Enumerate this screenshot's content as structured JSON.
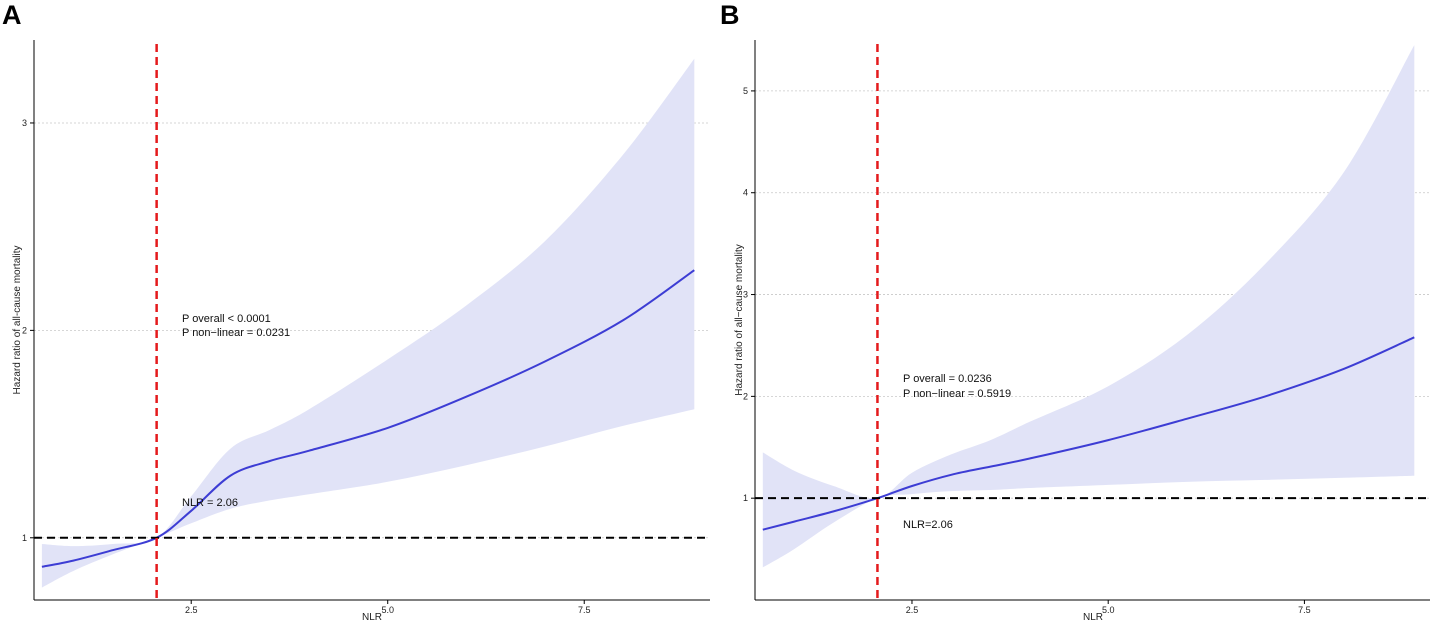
{
  "chart_data": [
    {
      "type": "line",
      "panel": "A",
      "xlabel": "NLR",
      "ylabel": "Hazard ratio of all-cause mortality",
      "xlim": [
        0.5,
        9.1
      ],
      "ylim": [
        0.7,
        3.4
      ],
      "xticks": [
        2.5,
        5.0,
        7.5
      ],
      "xtick_labels": [
        "2.5",
        "5.0",
        "7.5"
      ],
      "yticks": [
        1,
        2,
        3
      ],
      "ytick_labels": [
        "1",
        "2",
        "3"
      ],
      "grid": "horizontal dotted",
      "reference": {
        "x": 2.06,
        "y": 1
      },
      "series": [
        {
          "name": "HR",
          "x": [
            0.6,
            1.0,
            1.5,
            2.06,
            2.5,
            3.0,
            3.5,
            4.0,
            5.0,
            6.0,
            7.0,
            8.0,
            8.9
          ],
          "values": [
            0.86,
            0.89,
            0.94,
            1.0,
            1.13,
            1.3,
            1.37,
            1.42,
            1.53,
            1.68,
            1.85,
            2.05,
            2.29
          ]
        },
        {
          "name": "lower 95% CI",
          "x": [
            0.6,
            1.0,
            1.5,
            2.06,
            2.5,
            3.0,
            3.5,
            4.0,
            5.0,
            6.0,
            7.0,
            8.0,
            8.9
          ],
          "values": [
            0.76,
            0.84,
            0.92,
            1.0,
            1.07,
            1.14,
            1.18,
            1.21,
            1.27,
            1.35,
            1.44,
            1.54,
            1.62
          ]
        },
        {
          "name": "upper 95% CI",
          "x": [
            0.6,
            1.0,
            1.5,
            2.06,
            2.5,
            3.0,
            3.5,
            4.0,
            5.0,
            6.0,
            7.0,
            8.0,
            8.9
          ],
          "values": [
            0.97,
            0.96,
            0.97,
            1.0,
            1.2,
            1.43,
            1.52,
            1.62,
            1.86,
            2.12,
            2.43,
            2.85,
            3.31
          ]
        }
      ],
      "annotations": [
        "P overall < 0.0001",
        "P non−linear = 0.0231",
        "NLR = 2.06"
      ]
    },
    {
      "type": "line",
      "panel": "B",
      "xlabel": "NLR",
      "ylabel": "Hazard ratio of all−cause mortality",
      "xlim": [
        0.5,
        9.1
      ],
      "ylim": [
        0.0,
        5.5
      ],
      "xticks": [
        2.5,
        5.0,
        7.5
      ],
      "xtick_labels": [
        "2.5",
        "5.0",
        "7.5"
      ],
      "yticks": [
        1,
        2,
        3,
        4,
        5
      ],
      "ytick_labels": [
        "1",
        "2",
        "3",
        "4",
        "5"
      ],
      "grid": "horizontal dotted",
      "reference": {
        "x": 2.06,
        "y": 1
      },
      "series": [
        {
          "name": "HR",
          "x": [
            0.6,
            1.0,
            1.5,
            2.06,
            2.5,
            3.0,
            3.5,
            4.0,
            5.0,
            6.0,
            7.0,
            8.0,
            8.9
          ],
          "values": [
            0.69,
            0.77,
            0.87,
            1.0,
            1.12,
            1.23,
            1.31,
            1.39,
            1.57,
            1.78,
            2.0,
            2.27,
            2.58
          ]
        },
        {
          "name": "lower 95% CI",
          "x": [
            0.6,
            1.0,
            1.5,
            2.06,
            2.5,
            3.0,
            3.5,
            4.0,
            5.0,
            6.0,
            7.0,
            8.0,
            8.9
          ],
          "values": [
            0.32,
            0.5,
            0.76,
            1.0,
            1.04,
            1.07,
            1.08,
            1.1,
            1.13,
            1.16,
            1.18,
            1.2,
            1.22
          ]
        },
        {
          "name": "upper 95% CI",
          "x": [
            0.6,
            1.0,
            1.5,
            2.06,
            2.5,
            3.0,
            3.5,
            4.0,
            5.0,
            6.0,
            7.0,
            8.0,
            8.9
          ],
          "values": [
            1.45,
            1.27,
            1.12,
            1.0,
            1.25,
            1.43,
            1.57,
            1.75,
            2.1,
            2.6,
            3.3,
            4.2,
            5.45
          ]
        }
      ],
      "annotations": [
        "P overall = 0.0236",
        "P non−linear = 0.5919",
        "NLR=2.06"
      ]
    }
  ],
  "colors": {
    "curve": "#3d3dd4",
    "band": "#e1e3f7",
    "vline": "#e41a1c",
    "hline": "#000000",
    "grid": "#c8c8c8"
  }
}
